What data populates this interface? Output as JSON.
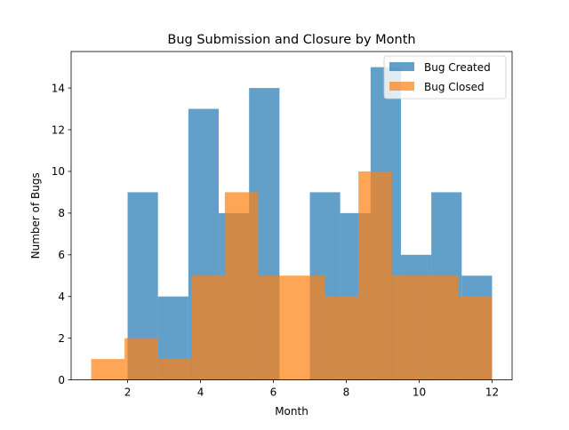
{
  "chart_data": {
    "type": "bar",
    "title": "Bug Submission and Closure by Month",
    "xlabel": "Month",
    "ylabel": "Number of Bugs",
    "xlim": [
      0.45,
      12.55
    ],
    "ylim": [
      0,
      15.75
    ],
    "xticks": [
      2,
      4,
      6,
      8,
      10,
      12
    ],
    "yticks": [
      0,
      2,
      4,
      6,
      8,
      10,
      12,
      14
    ],
    "grid": false,
    "legend_position": "upper right",
    "series": [
      {
        "name": "Bug Created",
        "color": "#1f77b4",
        "opacity": 0.7,
        "bins": [
          {
            "x0": 2.0,
            "x1": 2.833,
            "value": 9
          },
          {
            "x0": 2.833,
            "x1": 3.667,
            "value": 4
          },
          {
            "x0": 3.667,
            "x1": 4.5,
            "value": 13
          },
          {
            "x0": 4.5,
            "x1": 5.333,
            "value": 8
          },
          {
            "x0": 5.333,
            "x1": 6.167,
            "value": 14
          },
          {
            "x0": 6.167,
            "x1": 7.0,
            "value": 0
          },
          {
            "x0": 7.0,
            "x1": 7.833,
            "value": 9
          },
          {
            "x0": 7.833,
            "x1": 8.667,
            "value": 8
          },
          {
            "x0": 8.667,
            "x1": 9.5,
            "value": 15
          },
          {
            "x0": 9.5,
            "x1": 10.333,
            "value": 6
          },
          {
            "x0": 10.333,
            "x1": 11.167,
            "value": 9
          },
          {
            "x0": 11.167,
            "x1": 12.0,
            "value": 5
          }
        ]
      },
      {
        "name": "Bug Closed",
        "color": "#ff7f0e",
        "opacity": 0.7,
        "bins": [
          {
            "x0": 1.0,
            "x1": 1.917,
            "value": 1
          },
          {
            "x0": 1.917,
            "x1": 2.833,
            "value": 2
          },
          {
            "x0": 2.833,
            "x1": 3.75,
            "value": 1
          },
          {
            "x0": 3.75,
            "x1": 4.667,
            "value": 5
          },
          {
            "x0": 4.667,
            "x1": 5.583,
            "value": 9
          },
          {
            "x0": 5.583,
            "x1": 6.5,
            "value": 5
          },
          {
            "x0": 6.5,
            "x1": 7.417,
            "value": 5
          },
          {
            "x0": 7.417,
            "x1": 8.333,
            "value": 4
          },
          {
            "x0": 8.333,
            "x1": 9.25,
            "value": 10
          },
          {
            "x0": 9.25,
            "x1": 10.167,
            "value": 5
          },
          {
            "x0": 10.167,
            "x1": 11.083,
            "value": 5
          },
          {
            "x0": 11.083,
            "x1": 12.0,
            "value": 4
          }
        ]
      }
    ]
  }
}
